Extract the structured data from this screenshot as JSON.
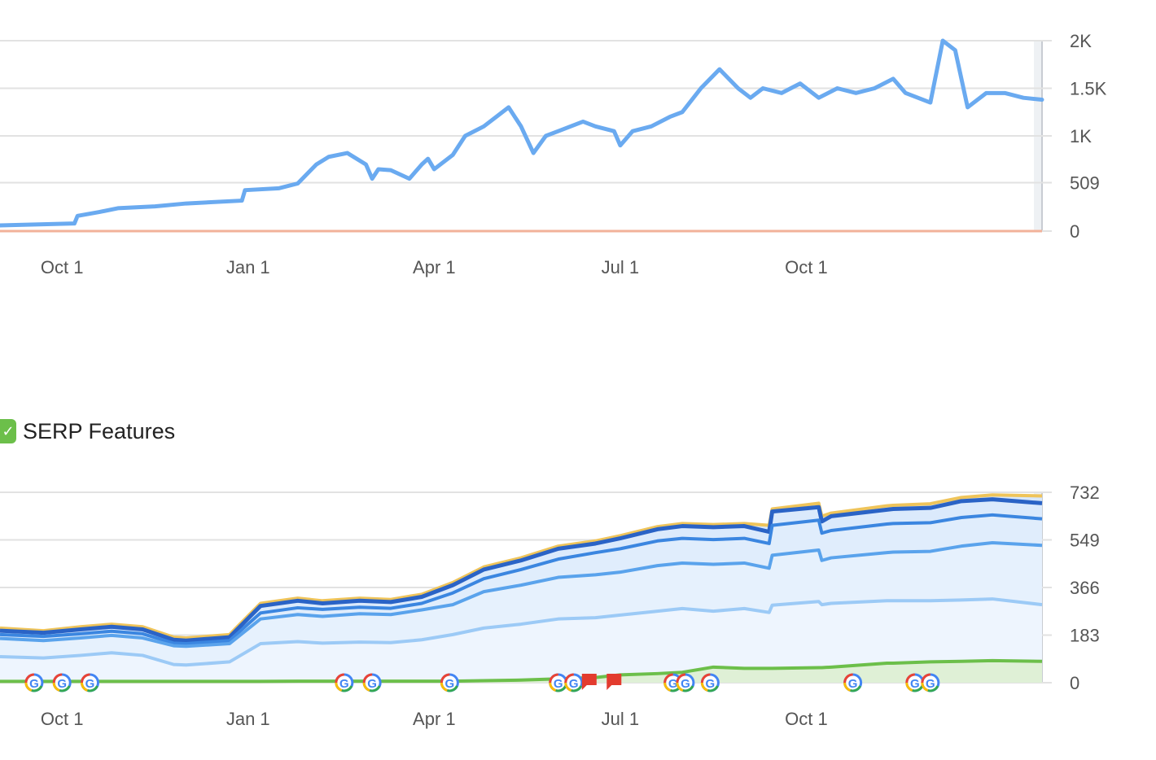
{
  "colors": {
    "grid": "#e2e2e2",
    "traffic_line": "#6aaaf0",
    "zero_line": "#f2b29a",
    "serp_top": "#efc45a",
    "serp_green": "#6cbf4a",
    "flag": "#e33b2e"
  },
  "legend": {
    "label": "SERP Features",
    "checked": true,
    "check_glyph": "✓"
  },
  "chart_data": [
    {
      "type": "line",
      "title": "",
      "ylim": [
        0,
        2000
      ],
      "yticks": [
        {
          "value": 0,
          "label": "0"
        },
        {
          "value": 509,
          "label": "509"
        },
        {
          "value": 1000,
          "label": "1K"
        },
        {
          "value": 1500,
          "label": "1.5K"
        },
        {
          "value": 2000,
          "label": "2K"
        }
      ],
      "xlim": [
        0,
        16.8
      ],
      "xticks": [
        {
          "value": 1,
          "label": "Oct 1"
        },
        {
          "value": 4,
          "label": "Jan 1"
        },
        {
          "value": 7,
          "label": "Apr 1"
        },
        {
          "value": 10,
          "label": "Jul 1"
        },
        {
          "value": 13,
          "label": "Oct 1"
        }
      ],
      "series": [
        {
          "name": "traffic",
          "x": [
            0,
            1.2,
            1.25,
            1.6,
            1.9,
            2.5,
            3.0,
            3.9,
            3.95,
            4.5,
            4.8,
            5.1,
            5.3,
            5.6,
            5.9,
            6.0,
            6.1,
            6.3,
            6.6,
            6.8,
            6.9,
            7.0,
            7.3,
            7.5,
            7.8,
            8.0,
            8.2,
            8.4,
            8.6,
            8.8,
            9.0,
            9.2,
            9.4,
            9.6,
            9.9,
            10.0,
            10.2,
            10.5,
            10.8,
            11.0,
            11.3,
            11.6,
            11.9,
            12.1,
            12.3,
            12.6,
            12.9,
            13.2,
            13.5,
            13.8,
            14.1,
            14.4,
            14.6,
            14.8,
            15.0,
            15.2,
            15.4,
            15.6,
            15.9,
            16.2,
            16.5,
            16.8
          ],
          "values": [
            60,
            80,
            160,
            200,
            240,
            260,
            290,
            320,
            430,
            450,
            500,
            700,
            780,
            820,
            700,
            550,
            650,
            640,
            550,
            700,
            760,
            650,
            800,
            1000,
            1100,
            1200,
            1300,
            1100,
            820,
            1000,
            1050,
            1100,
            1150,
            1100,
            1050,
            900,
            1050,
            1100,
            1200,
            1250,
            1500,
            1700,
            1500,
            1400,
            1500,
            1450,
            1550,
            1400,
            1500,
            1450,
            1500,
            1600,
            1450,
            1400,
            1350,
            2000,
            1900,
            1300,
            1450,
            1450,
            1400,
            1380
          ]
        }
      ]
    },
    {
      "type": "area",
      "title": "SERP Features",
      "ylim": [
        0,
        732
      ],
      "yticks": [
        {
          "value": 0,
          "label": "0"
        },
        {
          "value": 183,
          "label": "183"
        },
        {
          "value": 366,
          "label": "366"
        },
        {
          "value": 549,
          "label": "549"
        },
        {
          "value": 732,
          "label": "732"
        }
      ],
      "xlim": [
        0,
        16.8
      ],
      "xticks": [
        {
          "value": 1,
          "label": "Oct 1"
        },
        {
          "value": 4,
          "label": "Jan 1"
        },
        {
          "value": 7,
          "label": "Apr 1"
        },
        {
          "value": 10,
          "label": "Jul 1"
        },
        {
          "value": 13,
          "label": "Oct 1"
        }
      ],
      "x": [
        0,
        0.7,
        1.3,
        1.8,
        2.3,
        2.8,
        3.0,
        3.7,
        4.2,
        4.8,
        5.2,
        5.8,
        6.3,
        6.8,
        7.3,
        7.8,
        8.4,
        9.0,
        9.6,
        10.0,
        10.6,
        11.0,
        11.5,
        12.0,
        12.4,
        12.45,
        13.2,
        13.25,
        13.4,
        14.3,
        14.4,
        15.0,
        15.5,
        16.0,
        16.8
      ],
      "series": [
        {
          "name": "top",
          "values": [
            210,
            200,
            215,
            225,
            215,
            175,
            172,
            185,
            305,
            325,
            315,
            325,
            320,
            340,
            385,
            445,
            480,
            525,
            545,
            565,
            600,
            612,
            608,
            612,
            605,
            668,
            690,
            640,
            652,
            680,
            682,
            688,
            712,
            722,
            718
          ]
        },
        {
          "name": "s2",
          "values": [
            200,
            192,
            205,
            215,
            205,
            165,
            162,
            175,
            295,
            315,
            305,
            315,
            310,
            330,
            375,
            435,
            470,
            515,
            535,
            555,
            590,
            602,
            598,
            602,
            580,
            658,
            675,
            620,
            640,
            665,
            668,
            672,
            698,
            705,
            690
          ]
        },
        {
          "name": "s3",
          "values": [
            185,
            178,
            188,
            198,
            188,
            152,
            150,
            162,
            268,
            288,
            282,
            290,
            286,
            305,
            345,
            400,
            435,
            475,
            500,
            515,
            545,
            555,
            550,
            555,
            535,
            605,
            625,
            575,
            585,
            610,
            612,
            615,
            635,
            645,
            630
          ]
        },
        {
          "name": "s4",
          "values": [
            170,
            162,
            172,
            182,
            172,
            142,
            140,
            150,
            245,
            262,
            255,
            265,
            262,
            280,
            300,
            350,
            375,
            405,
            415,
            425,
            450,
            460,
            455,
            460,
            440,
            490,
            510,
            470,
            480,
            500,
            502,
            505,
            525,
            538,
            528
          ]
        },
        {
          "name": "s5",
          "values": [
            100,
            95,
            105,
            115,
            105,
            70,
            68,
            80,
            150,
            158,
            152,
            156,
            154,
            165,
            185,
            210,
            225,
            245,
            250,
            260,
            275,
            285,
            275,
            285,
            270,
            298,
            312,
            300,
            305,
            315,
            315,
            315,
            318,
            322,
            300
          ]
        },
        {
          "name": "green",
          "values": [
            5,
            5,
            5,
            5,
            5,
            5,
            5,
            5,
            5,
            6,
            6,
            6,
            6,
            6,
            6,
            8,
            10,
            15,
            20,
            30,
            35,
            40,
            60,
            55,
            55,
            55,
            58,
            58,
            60,
            75,
            75,
            80,
            82,
            85,
            82
          ]
        }
      ],
      "annotations": {
        "google_updates": [
          {
            "x": 0.55,
            "label": "G"
          },
          {
            "x": 1.0,
            "label": "G"
          },
          {
            "x": 1.45,
            "label": "G"
          },
          {
            "x": 5.55,
            "label": "G"
          },
          {
            "x": 6.0,
            "label": "G"
          },
          {
            "x": 7.25,
            "label": "G"
          },
          {
            "x": 9.0,
            "label": "G"
          },
          {
            "x": 9.25,
            "label": "G"
          },
          {
            "x": 10.85,
            "label": "G"
          },
          {
            "x": 11.05,
            "label": "G"
          },
          {
            "x": 11.45,
            "label": "G"
          },
          {
            "x": 13.75,
            "label": "G"
          },
          {
            "x": 14.75,
            "label": "G"
          },
          {
            "x": 15.0,
            "label": "G"
          }
        ],
        "flags": [
          {
            "x": 9.5
          },
          {
            "x": 9.9
          }
        ]
      }
    }
  ]
}
